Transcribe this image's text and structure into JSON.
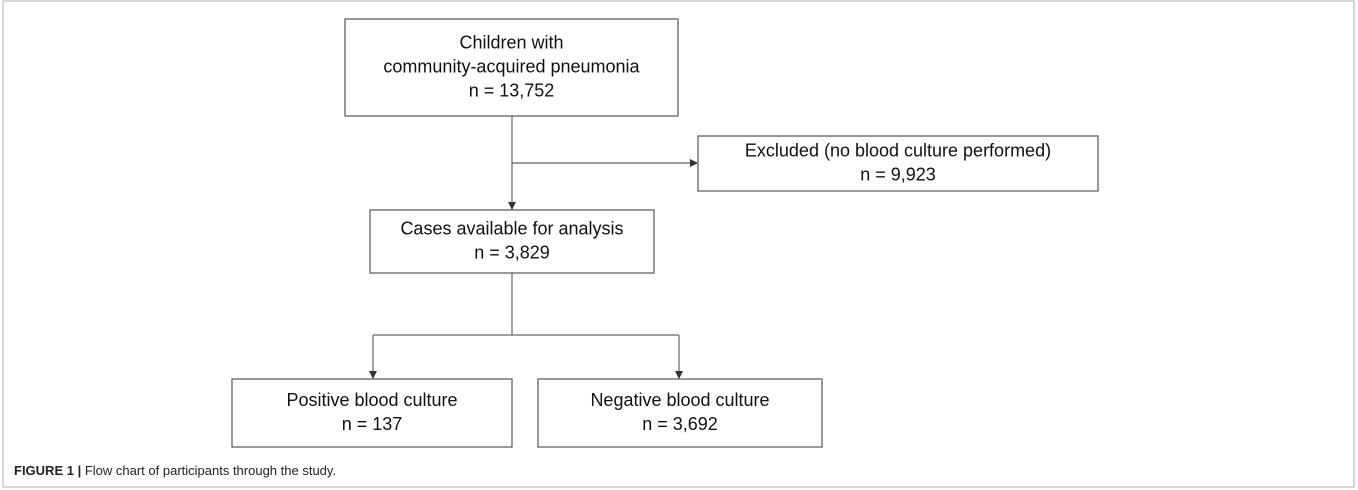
{
  "nodes": [
    {
      "lines": [
        "Children with",
        "community-acquired pneumonia",
        "n = 13,752"
      ]
    },
    {
      "lines": [
        "Excluded (no blood culture performed)",
        "n = 9,923"
      ]
    },
    {
      "lines": [
        "Cases available for analysis",
        "n = 3,829"
      ]
    },
    {
      "lines": [
        "Positive blood culture",
        "n = 137"
      ]
    },
    {
      "lines": [
        "Negative blood culture",
        "n = 3,692"
      ]
    }
  ],
  "caption": {
    "label": "FIGURE 1 |",
    "text": "Flow chart of participants through the study."
  }
}
